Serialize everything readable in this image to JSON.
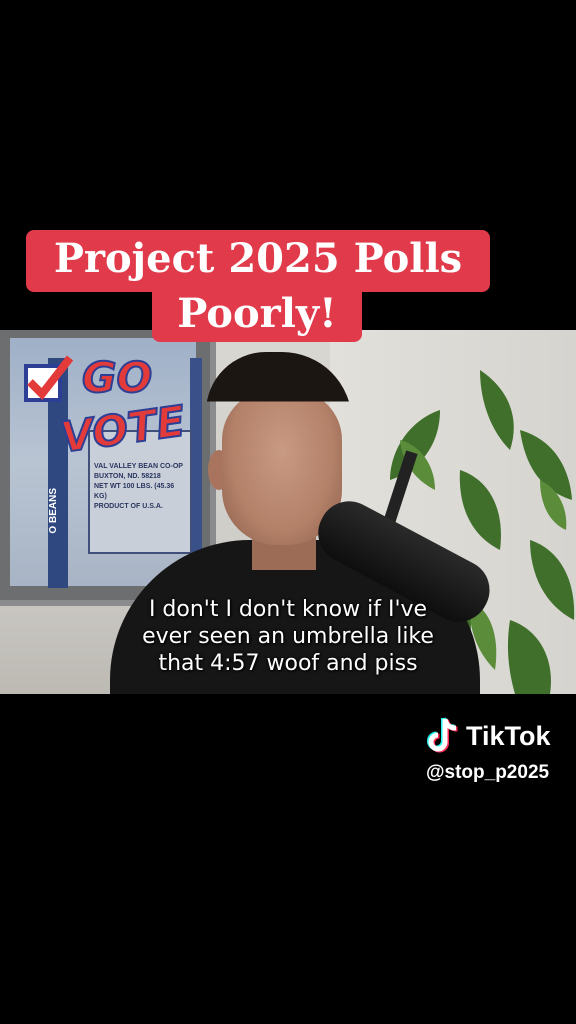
{
  "title": {
    "line1": "Project 2025 Polls",
    "line2": "Poorly!"
  },
  "poster": {
    "logo_text_go": "GO",
    "logo_text_vote": "VOTE",
    "label_line1": "VAL VALLEY BEAN CO-OP",
    "label_line2": "BUXTON, ND. 58218",
    "label_line3": "NET WT 100 LBS. (45.36 KG)",
    "label_line4": "PRODUCT OF U.S.A.",
    "side_text": "O BEANS"
  },
  "caption": {
    "line1": "I don't I don't know if I've",
    "line2": "ever seen an umbrella like",
    "line3": "that 4:57 woof and piss"
  },
  "watermark": {
    "brand": "TikTok",
    "handle": "@stop_p2025"
  },
  "colors": {
    "title_bg": "#e03a4b",
    "background": "#000000"
  }
}
